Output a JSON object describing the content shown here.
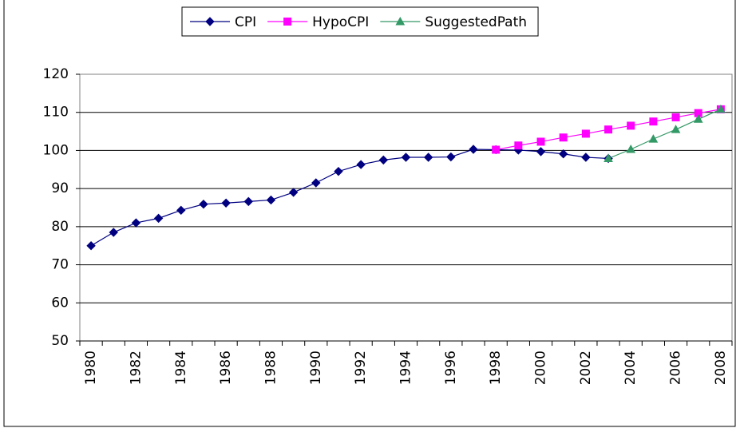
{
  "chart_data": {
    "type": "line",
    "categories": [
      "1980",
      null,
      "1982",
      null,
      "1984",
      null,
      "1986",
      null,
      "1988",
      null,
      "1990",
      null,
      "1992",
      null,
      "1994",
      null,
      "1996",
      null,
      "1998",
      null,
      "2000",
      null,
      "2002",
      null,
      "2004",
      null,
      "2006",
      null,
      "2008"
    ],
    "series": [
      {
        "name": "CPI",
        "color": "#000080",
        "marker": "diamond",
        "values": [
          75.0,
          78.5,
          81.0,
          82.2,
          84.3,
          85.9,
          86.2,
          86.6,
          87.0,
          89.0,
          91.5,
          94.5,
          96.3,
          97.5,
          98.2,
          98.2,
          98.3,
          100.3,
          100.2,
          100.1,
          99.7,
          99.1,
          98.2,
          97.9,
          null,
          null,
          null,
          null,
          null
        ]
      },
      {
        "name": "HypoCPI",
        "color": "#ff00ff",
        "marker": "square",
        "values": [
          null,
          null,
          null,
          null,
          null,
          null,
          null,
          null,
          null,
          null,
          null,
          null,
          null,
          null,
          null,
          null,
          null,
          null,
          100.2,
          101.3,
          102.3,
          103.4,
          104.4,
          105.5,
          106.5,
          107.6,
          108.7,
          109.8,
          110.8
        ]
      },
      {
        "name": "SuggestedPath",
        "color": "#339966",
        "marker": "triangle",
        "values": [
          null,
          null,
          null,
          null,
          null,
          null,
          null,
          null,
          null,
          null,
          null,
          null,
          null,
          null,
          null,
          null,
          null,
          null,
          null,
          null,
          null,
          null,
          null,
          97.9,
          100.3,
          103.0,
          105.5,
          108.2,
          110.8
        ]
      }
    ],
    "ylim": [
      50,
      120
    ],
    "yticks": [
      50,
      60,
      70,
      80,
      90,
      100,
      110,
      120
    ],
    "grid": true,
    "legend": "top"
  }
}
